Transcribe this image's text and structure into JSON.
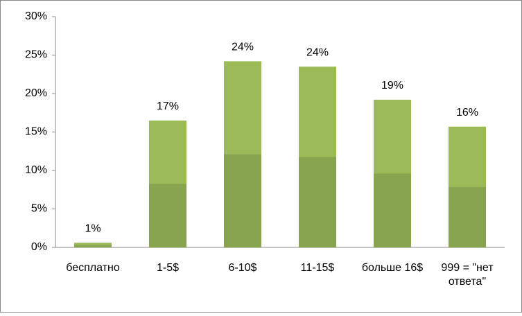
{
  "chart_data": {
    "type": "bar",
    "categories": [
      "бесплатно",
      "1-5$",
      "6-10$",
      "11-15$",
      "больше 16$",
      "999 = \"нет ответа\""
    ],
    "values": [
      0.6,
      16.5,
      24.2,
      23.5,
      19.2,
      15.7
    ],
    "value_labels": [
      "1%",
      "17%",
      "24%",
      "24%",
      "19%",
      "16%"
    ],
    "color": "#9bbb59",
    "ylim": [
      0,
      30
    ],
    "yticks": [
      {
        "value": 0,
        "label": "0%"
      },
      {
        "value": 5,
        "label": "5%"
      },
      {
        "value": 10,
        "label": "10%"
      },
      {
        "value": 15,
        "label": "15%"
      },
      {
        "value": 20,
        "label": "20%"
      },
      {
        "value": 25,
        "label": "25%"
      },
      {
        "value": 30,
        "label": "30%"
      }
    ],
    "grid": false
  }
}
